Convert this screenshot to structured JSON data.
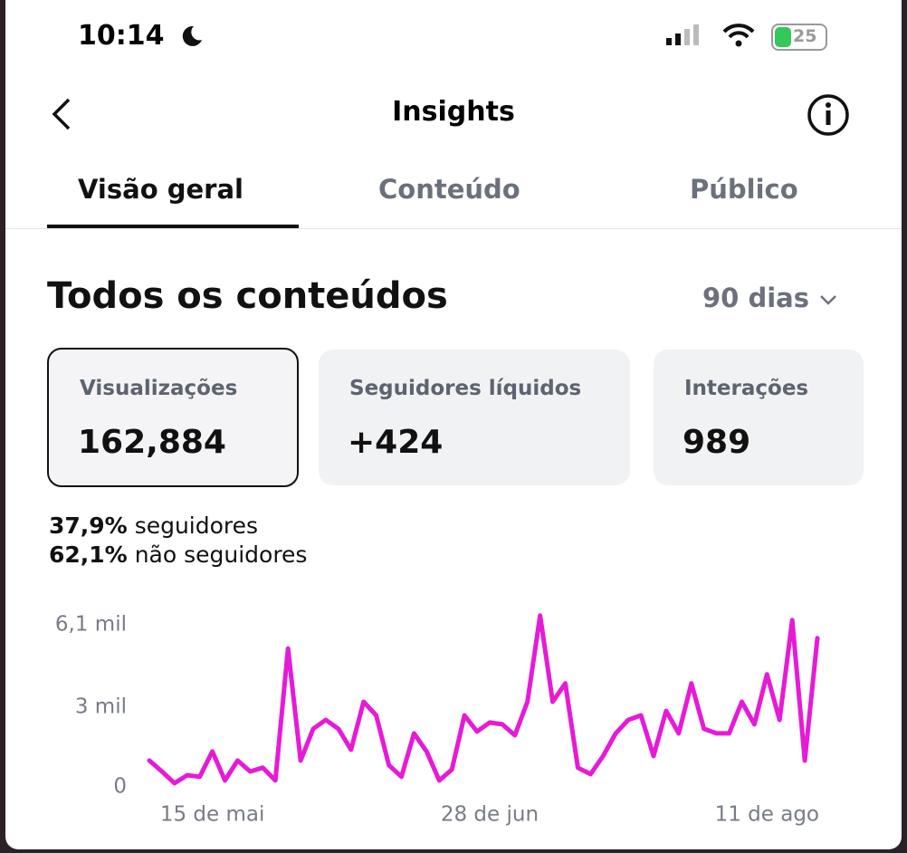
{
  "status_bar": {
    "time": "10:14",
    "battery": "25"
  },
  "header": {
    "title": "Insights"
  },
  "tabs": [
    "Visão geral",
    "Conteúdo",
    "Público"
  ],
  "section": {
    "title": "Todos os conteúdos",
    "period": "90 dias"
  },
  "cards": [
    {
      "label": "Visualizações",
      "value": "162,884"
    },
    {
      "label": "Seguidores líquidos",
      "value": "+424"
    },
    {
      "label": "Interações",
      "value": "989"
    }
  ],
  "breakdown": [
    {
      "percent": "37,9%",
      "label": "seguidores"
    },
    {
      "percent": "62,1%",
      "label": "não seguidores"
    }
  ],
  "chart_data": {
    "type": "line",
    "categories": [
      null,
      null,
      null,
      null,
      null,
      "15 de mai",
      null,
      null,
      null,
      null,
      null,
      null,
      null,
      null,
      null,
      null,
      null,
      null,
      null,
      null,
      null,
      null,
      null,
      null,
      null,
      null,
      null,
      "28 de jun",
      null,
      null,
      null,
      null,
      null,
      null,
      null,
      null,
      null,
      null,
      null,
      null,
      null,
      null,
      null,
      null,
      null,
      null,
      null,
      null,
      null,
      "11 de ago",
      null,
      null,
      null,
      null
    ],
    "series": [
      {
        "color": "#e61bd6",
        "values": [
          990,
          580,
          140,
          440,
          380,
          1330,
          240,
          990,
          580,
          720,
          240,
          5200,
          990,
          2180,
          2520,
          2180,
          1400,
          3200,
          2690,
          820,
          380,
          2010,
          1330,
          240,
          650,
          2690,
          2080,
          2420,
          2350,
          1940,
          3200,
          6440,
          3200,
          3890,
          720,
          480,
          1160,
          2010,
          2520,
          2690,
          1160,
          2860,
          2010,
          3890,
          2180,
          2010,
          2010,
          3200,
          2350,
          4230,
          2520,
          6270,
          990,
          5590
        ]
      }
    ],
    "ylim": [
      0,
      6500
    ],
    "yticks": [
      0,
      {
        "value": 3000,
        "label": "3 mil"
      },
      {
        "value": 6100,
        "label": "6,1 mil"
      }
    ]
  }
}
